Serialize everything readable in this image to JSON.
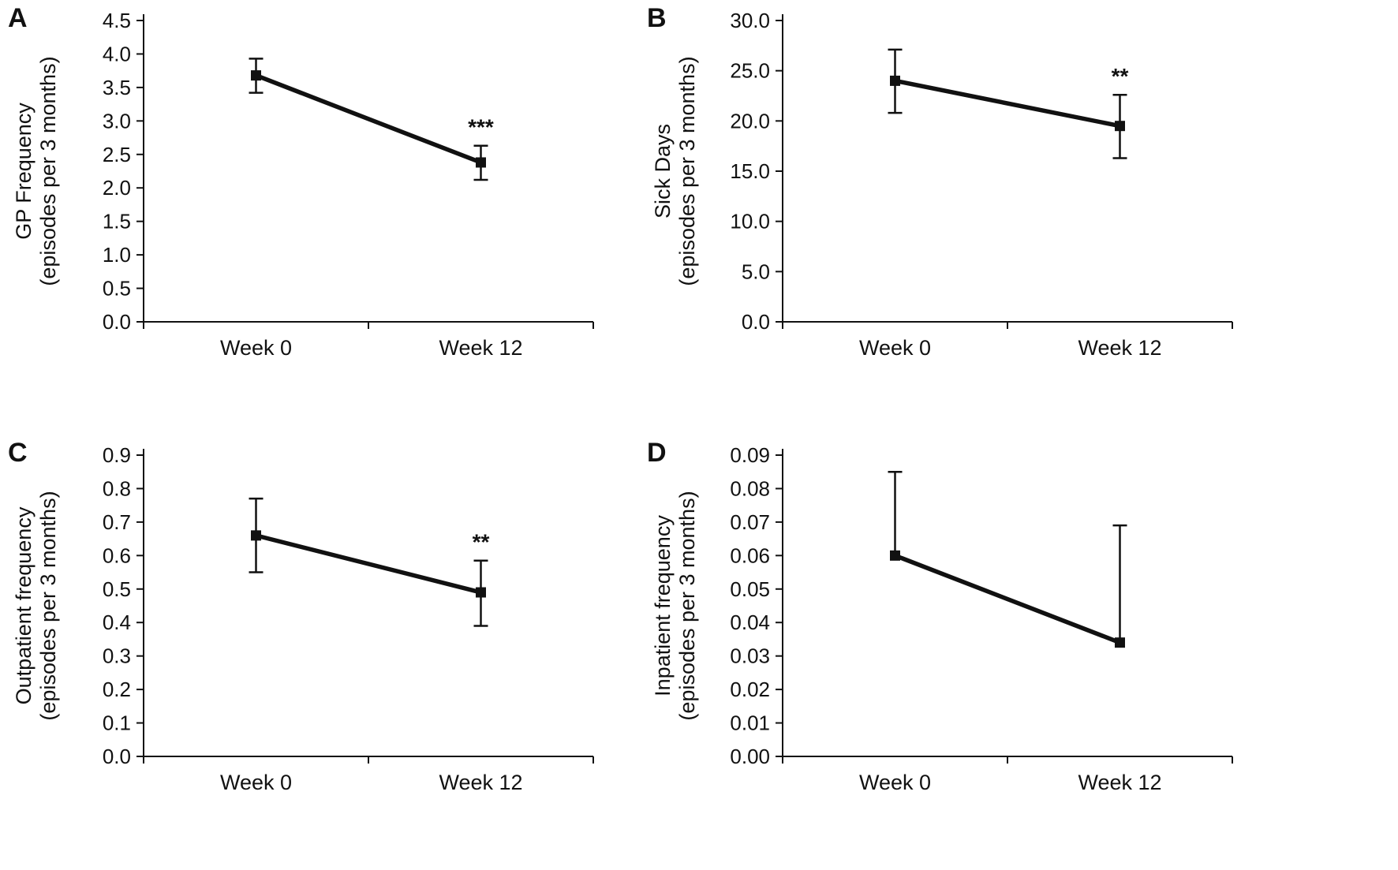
{
  "figure": {
    "background": "#ffffff",
    "ink": "#111111"
  },
  "chart_data": [
    {
      "type": "line",
      "panel": "A",
      "title": "",
      "ylabel_line1": "GP Frequency",
      "ylabel_line2": "(episodes per 3 months)",
      "xlabel": "",
      "categories": [
        "Week 0",
        "Week 12"
      ],
      "values": [
        3.68,
        2.38
      ],
      "err_up": [
        0.25,
        0.25
      ],
      "err_down": [
        0.26,
        0.26
      ],
      "significance": [
        "",
        "***"
      ],
      "ylim": [
        0,
        4.5
      ],
      "ytick_step": 0.5,
      "ytick_decimals": 1,
      "grid": false,
      "legend": "none"
    },
    {
      "type": "line",
      "panel": "B",
      "title": "",
      "ylabel_line1": "Sick Days",
      "ylabel_line2": "(episodes per 3 months)",
      "xlabel": "",
      "categories": [
        "Week 0",
        "Week 12"
      ],
      "values": [
        24.0,
        19.5
      ],
      "err_up": [
        3.1,
        3.1
      ],
      "err_down": [
        3.2,
        3.2
      ],
      "significance": [
        "",
        "**"
      ],
      "ylim": [
        0,
        30
      ],
      "ytick_step": 5,
      "ytick_decimals": 1,
      "grid": false,
      "legend": "none"
    },
    {
      "type": "line",
      "panel": "C",
      "title": "",
      "ylabel_line1": "Outpatient frequency",
      "ylabel_line2": "(episodes per 3 months)",
      "xlabel": "",
      "categories": [
        "Week 0",
        "Week 12"
      ],
      "values": [
        0.66,
        0.49
      ],
      "err_up": [
        0.11,
        0.095
      ],
      "err_down": [
        0.11,
        0.1
      ],
      "significance": [
        "",
        "**"
      ],
      "ylim": [
        0,
        0.9
      ],
      "ytick_step": 0.1,
      "ytick_decimals": 1,
      "grid": false,
      "legend": "none"
    },
    {
      "type": "line",
      "panel": "D",
      "title": "",
      "ylabel_line1": "Inpatient frequency",
      "ylabel_line2": "(episodes per 3 months)",
      "xlabel": "",
      "categories": [
        "Week 0",
        "Week 12"
      ],
      "values": [
        0.06,
        0.034
      ],
      "err_up": [
        0.025,
        0.035
      ],
      "err_down": [
        0,
        0
      ],
      "significance": [
        "",
        ""
      ],
      "ylim": [
        0,
        0.09
      ],
      "ytick_step": 0.01,
      "ytick_decimals": 2,
      "grid": false,
      "legend": "none"
    }
  ]
}
